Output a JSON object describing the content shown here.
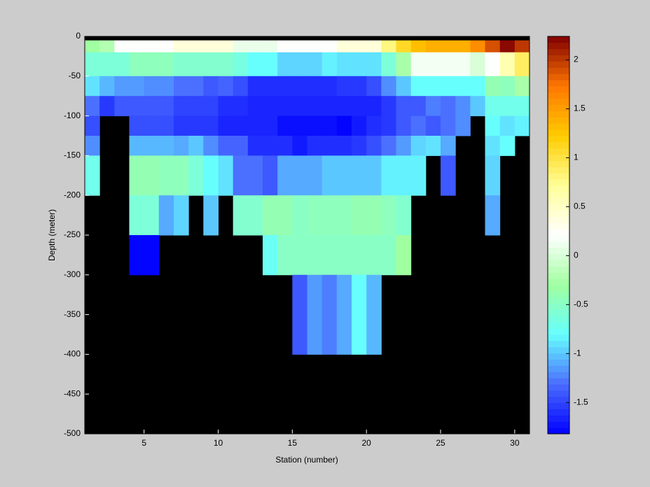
{
  "chart_data": {
    "type": "heatmap",
    "xlabel": "Station (number)",
    "ylabel": "Depth (meter)",
    "xbins": [
      1,
      2,
      3,
      4,
      5,
      6,
      7,
      8,
      9,
      10,
      11,
      12,
      13,
      14,
      15,
      16,
      17,
      18,
      19,
      20,
      21,
      22,
      23,
      24,
      25,
      26,
      27,
      28,
      29,
      30,
      31
    ],
    "ybins": [
      0,
      -5,
      -20,
      -50,
      -75,
      -100,
      -125,
      -150,
      -200,
      -250,
      -300,
      -400,
      -500
    ],
    "values": [
      [
        null,
        null,
        null,
        null,
        null,
        null,
        null,
        null,
        null,
        null,
        null,
        null,
        null,
        null,
        null,
        null,
        null,
        null,
        null,
        null,
        null,
        null,
        null,
        null,
        null,
        null,
        null,
        null,
        null,
        null
      ],
      [
        -0.3,
        -0.2,
        0.2,
        0.2,
        0.2,
        0.2,
        0.4,
        0.4,
        0.4,
        0.4,
        0.1,
        0.1,
        0.1,
        0.2,
        0.2,
        0.2,
        0.2,
        0.4,
        0.4,
        0.4,
        0.8,
        1.1,
        1.3,
        1.4,
        1.4,
        1.4,
        1.6,
        1.9,
        2.2,
        2.0
      ],
      [
        -0.6,
        -0.6,
        -0.6,
        -0.45,
        -0.45,
        -0.45,
        -0.55,
        -0.55,
        -0.55,
        -0.55,
        -0.65,
        -0.8,
        -0.8,
        -0.95,
        -0.95,
        -0.95,
        -0.85,
        -0.9,
        -0.9,
        -0.9,
        -0.6,
        -0.25,
        0.15,
        0.15,
        0.15,
        0.15,
        0,
        0.2,
        0.6,
        0.9
      ],
      [
        -0.9,
        -1.05,
        -1.15,
        -1.15,
        -1.2,
        -1.2,
        -1.3,
        -1.3,
        -1.4,
        -1.35,
        -1.45,
        -1.6,
        -1.6,
        -1.6,
        -1.6,
        -1.6,
        -1.6,
        -1.55,
        -1.55,
        -1.45,
        -1.2,
        -1.0,
        -0.8,
        -0.8,
        -0.8,
        -0.8,
        -0.8,
        -0.4,
        -0.45,
        -0.25
      ],
      [
        -1.3,
        -1.55,
        -1.4,
        -1.4,
        -1.4,
        -1.4,
        -1.5,
        -1.5,
        -1.5,
        -1.6,
        -1.6,
        -1.65,
        -1.65,
        -1.65,
        -1.65,
        -1.65,
        -1.65,
        -1.65,
        -1.65,
        -1.65,
        -1.55,
        -1.4,
        -1.4,
        -1.25,
        -1.3,
        -1.2,
        -1.0,
        -0.7,
        -0.7,
        -0.7
      ],
      [
        -1.45,
        null,
        null,
        -1.45,
        -1.45,
        -1.45,
        -1.55,
        -1.55,
        -1.55,
        -1.65,
        -1.65,
        -1.65,
        -1.65,
        -1.75,
        -1.75,
        -1.75,
        -1.75,
        -1.8,
        -1.7,
        -1.6,
        -1.55,
        -1.4,
        -1.3,
        -1.4,
        -1.3,
        -1.2,
        null,
        -0.8,
        -0.9,
        -0.85
      ],
      [
        -1.2,
        null,
        null,
        -1.05,
        -1.05,
        -1.05,
        -1.1,
        -1.0,
        -1.2,
        -1.35,
        -1.35,
        -1.6,
        -1.6,
        -1.6,
        -1.7,
        -1.6,
        -1.6,
        -1.6,
        -1.55,
        -1.45,
        -1.3,
        -1.15,
        -0.95,
        -0.9,
        -1.1,
        null,
        null,
        -0.9,
        -0.8,
        null
      ],
      [
        -0.7,
        null,
        null,
        -0.4,
        -0.4,
        -0.45,
        -0.45,
        -0.6,
        -0.8,
        -0.9,
        -1.3,
        -1.3,
        -1.4,
        -1.1,
        -1.1,
        -1.1,
        -1.0,
        -1.0,
        -1.0,
        -1.0,
        -0.85,
        -0.85,
        -0.85,
        null,
        -1.4,
        null,
        null,
        -0.95,
        null,
        null
      ],
      [
        null,
        null,
        null,
        -0.6,
        -0.6,
        -1.1,
        -0.95,
        null,
        -1.0,
        null,
        -0.55,
        -0.55,
        -0.4,
        -0.4,
        -0.5,
        -0.45,
        -0.45,
        -0.45,
        -0.4,
        -0.4,
        -0.45,
        -0.55,
        null,
        null,
        null,
        null,
        null,
        -1.1,
        null,
        null
      ],
      [
        null,
        null,
        null,
        -1.8,
        -1.8,
        null,
        null,
        null,
        null,
        null,
        null,
        null,
        -0.75,
        -0.5,
        -0.5,
        -0.5,
        -0.5,
        -0.5,
        -0.5,
        -0.5,
        -0.5,
        -0.3,
        null,
        null,
        null,
        null,
        null,
        null,
        null,
        null
      ],
      [
        null,
        null,
        null,
        null,
        null,
        null,
        null,
        null,
        null,
        null,
        null,
        null,
        null,
        null,
        -1.4,
        -1.15,
        -1.25,
        -1.1,
        -0.8,
        -1.05,
        null,
        null,
        null,
        null,
        null,
        null,
        null,
        null,
        null,
        null
      ],
      [
        null,
        null,
        null,
        null,
        null,
        null,
        null,
        null,
        null,
        null,
        null,
        null,
        null,
        null,
        null,
        null,
        null,
        null,
        null,
        null,
        null,
        null,
        null,
        null,
        null,
        null,
        null,
        null,
        null,
        null
      ]
    ],
    "xlim": [
      1,
      31
    ],
    "xticks": [
      5,
      10,
      15,
      20,
      25,
      30
    ],
    "ylim": [
      -500,
      0
    ],
    "yticks": [
      -500,
      -450,
      -400,
      -350,
      -300,
      -250,
      -200,
      -150,
      -100,
      -50,
      0
    ],
    "clim": [
      -1.82,
      2.24
    ],
    "cticks": [
      -1.5,
      -1,
      -0.5,
      0,
      0.5,
      1,
      1.5,
      2
    ],
    "colormap": [
      "#0000ff",
      "#4a6cff",
      "#66ffff",
      "#a0ffa0",
      "#ffffff",
      "#ffff99",
      "#ffcc00",
      "#ff7700",
      "#800000"
    ],
    "missing_color": "#000000"
  }
}
